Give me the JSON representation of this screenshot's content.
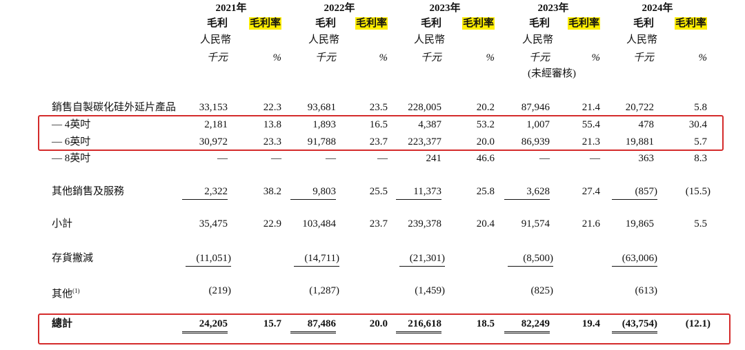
{
  "header": {
    "periods": [
      {
        "year": "2021年",
        "gross_profit": "毛利",
        "margin": "毛利率",
        "currency": "人民幣",
        "unit": "千元",
        "percent": "%"
      },
      {
        "year": "2022年",
        "gross_profit": "毛利",
        "margin": "毛利率",
        "currency": "人民幣",
        "unit": "千元",
        "percent": "%"
      },
      {
        "year": "2023年",
        "gross_profit": "毛利",
        "margin": "毛利率",
        "currency": "人民幣",
        "unit": "千元",
        "percent": "%"
      },
      {
        "year": "2023年",
        "gross_profit": "毛利",
        "margin": "毛利率",
        "currency": "人民幣",
        "unit": "千元",
        "percent": "%",
        "note": "(未經審核)"
      },
      {
        "year": "2024年",
        "gross_profit": "毛利",
        "margin": "毛利率",
        "currency": "人民幣",
        "unit": "千元",
        "percent": "%"
      }
    ]
  },
  "rows": [
    {
      "label": "銷售自製碳化硅外延片產品",
      "values": [
        "33,153",
        "22.3",
        "93,681",
        "23.5",
        "228,005",
        "20.2",
        "87,946",
        "21.4",
        "20,722",
        "5.8"
      ]
    },
    {
      "label": "— 4英吋",
      "values": [
        "2,181",
        "13.8",
        "1,893",
        "16.5",
        "4,387",
        "53.2",
        "1,007",
        "55.4",
        "478",
        "30.4"
      ]
    },
    {
      "label": "— 6英吋",
      "values": [
        "30,972",
        "23.3",
        "91,788",
        "23.7",
        "223,377",
        "20.0",
        "86,939",
        "21.3",
        "19,881",
        "5.7"
      ]
    },
    {
      "label": "— 8英吋",
      "values": [
        "—",
        "—",
        "—",
        "—",
        "241",
        "46.6",
        "—",
        "—",
        "363",
        "8.3"
      ]
    },
    {
      "label": "其他銷售及服務",
      "values": [
        "2,322",
        "38.2",
        "9,803",
        "25.5",
        "11,373",
        "25.8",
        "3,628",
        "27.4",
        "(857)",
        "(15.5)"
      ]
    },
    {
      "label": "小計",
      "values": [
        "35,475",
        "22.9",
        "103,484",
        "23.7",
        "239,378",
        "20.4",
        "91,574",
        "21.6",
        "19,865",
        "5.5"
      ]
    },
    {
      "label": "存貨撇減",
      "values": [
        "(11,051)",
        null,
        "(14,711)",
        null,
        "(21,301)",
        null,
        "(8,500)",
        null,
        "(63,006)",
        null
      ]
    },
    {
      "label": "其他",
      "superscript": "(1)",
      "values": [
        "(219)",
        null,
        "(1,287)",
        null,
        "(1,459)",
        null,
        "(825)",
        null,
        "(613)",
        null
      ]
    },
    {
      "label": "總計",
      "values": [
        "24,205",
        "15.7",
        "87,486",
        "20.0",
        "216,618",
        "18.5",
        "82,249",
        "19.4",
        "(43,754)",
        "(12.1)"
      ]
    }
  ]
}
